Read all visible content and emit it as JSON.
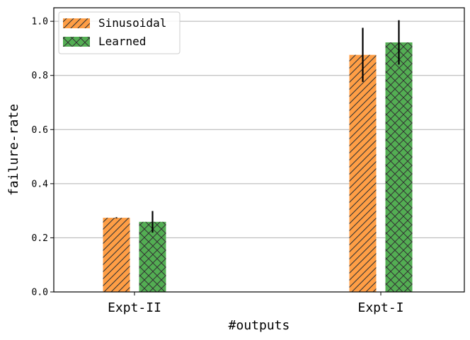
{
  "chart_data": {
    "type": "bar",
    "title": "",
    "xlabel": "#outputs",
    "ylabel": "failure-rate",
    "categories": [
      "Expt-II",
      "Expt-I"
    ],
    "ylim": [
      0,
      1.05
    ],
    "yticks": [
      "0.0",
      "0.2",
      "0.4",
      "0.6",
      "0.8",
      "1.0"
    ],
    "grid": "horizontal",
    "legend_position": "top-left",
    "series": [
      {
        "name": "Sinusoidal",
        "values": [
          0.274,
          0.876
        ],
        "errors": [
          0.002,
          0.1
        ],
        "color": "#ff9e45",
        "hatch": "diagonal"
      },
      {
        "name": "Learned",
        "values": [
          0.259,
          0.922
        ],
        "errors": [
          0.04,
          0.082
        ],
        "color": "#53ae53",
        "hatch": "crosshatch"
      }
    ]
  }
}
